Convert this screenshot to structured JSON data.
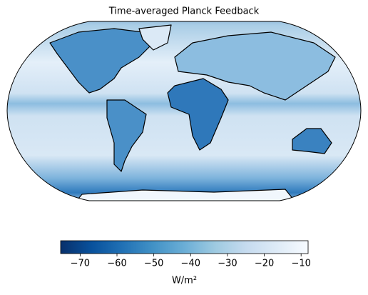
{
  "title": "Time-averaged Planck Feedback",
  "colorbar": {
    "label": "W/m²",
    "lim": [
      -75.3,
      -8.1
    ],
    "ticks": [
      {
        "value": -70,
        "label": "−70"
      },
      {
        "value": -60,
        "label": "−60"
      },
      {
        "value": -50,
        "label": "−50"
      },
      {
        "value": -40,
        "label": "−40"
      },
      {
        "value": -30,
        "label": "−30"
      },
      {
        "value": -20,
        "label": "−20"
      },
      {
        "value": -10,
        "label": "−10"
      }
    ],
    "colormap": [
      "#08306b",
      "#08519c",
      "#2171b5",
      "#4292c6",
      "#6baed6",
      "#9ecae1",
      "#c6dbef",
      "#deebf7",
      "#f7fbff"
    ]
  }
}
